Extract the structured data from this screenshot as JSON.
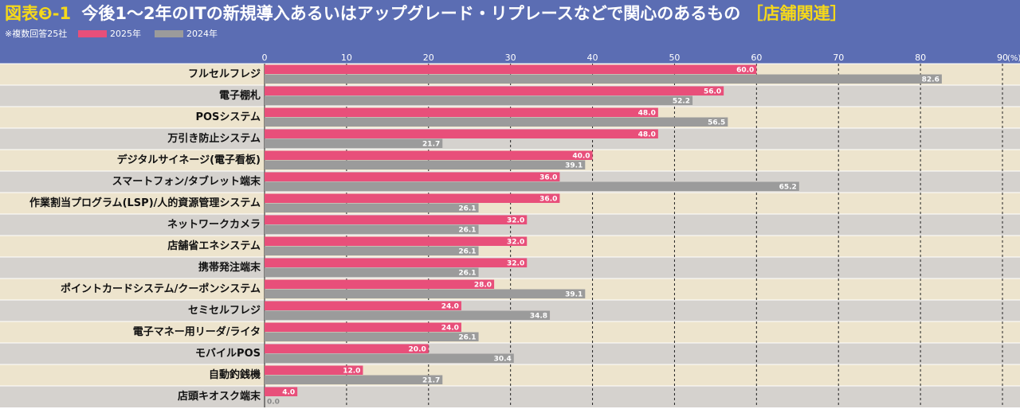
{
  "chart_data": {
    "type": "hbar",
    "figure_label": "図表❸-1",
    "title": "今後1～2年のITの新規導入あるいはアップグレード・リプレースなどで関心のあるもの",
    "title_tag": "［店舗関連］",
    "note": "※複数回答25社",
    "xlabel": "(%)",
    "categories": [
      "フルセルフレジ",
      "電子棚札",
      "POSシステム",
      "万引き防止システム",
      "デジタルサイネージ(電子看板)",
      "スマートフォン/タブレット端末",
      "作業割当プログラム(LSP)/人的資源管理システム",
      "ネットワークカメラ",
      "店舗省エネシステム",
      "携帯発注端末",
      "ポイントカードシステム/クーポンシステム",
      "セミセルフレジ",
      "電子マネー用リーダ/ライタ",
      "モバイルPOS",
      "自動釣銭機",
      "店頭キオスク端末"
    ],
    "series": [
      {
        "name": "2025年",
        "color": "#e84f7a",
        "values": [
          60.0,
          56.0,
          48.0,
          48.0,
          40.0,
          36.0,
          36.0,
          32.0,
          32.0,
          32.0,
          28.0,
          24.0,
          24.0,
          20.0,
          12.0,
          4.0
        ],
        "value_labels": [
          "60.0",
          "56.0",
          "48.0",
          "48.0",
          "40.0",
          "36.0",
          "36.0",
          "32.0",
          "32.0",
          "32.0",
          "28.0",
          "24.0",
          "24.0",
          "20.0",
          "12.0",
          "4.0"
        ]
      },
      {
        "name": "2024年",
        "color": "#9b9b9b",
        "values": [
          82.6,
          52.2,
          56.5,
          21.7,
          39.1,
          65.2,
          26.1,
          26.1,
          26.1,
          26.1,
          39.1,
          34.8,
          26.1,
          30.4,
          21.7,
          0.0
        ],
        "value_labels": [
          "82.6",
          "52.2",
          "56.5",
          "21.7",
          "39.1",
          "65.2",
          "26.1",
          "26.1",
          "26.1",
          "26.1",
          "39.1",
          "34.8",
          "26.1",
          "30.4",
          "21.7",
          "0.0"
        ]
      }
    ],
    "xlim": [
      0,
      90
    ],
    "xticks": [
      0,
      10,
      20,
      30,
      40,
      50,
      60,
      70,
      80,
      90
    ],
    "grid": true
  }
}
